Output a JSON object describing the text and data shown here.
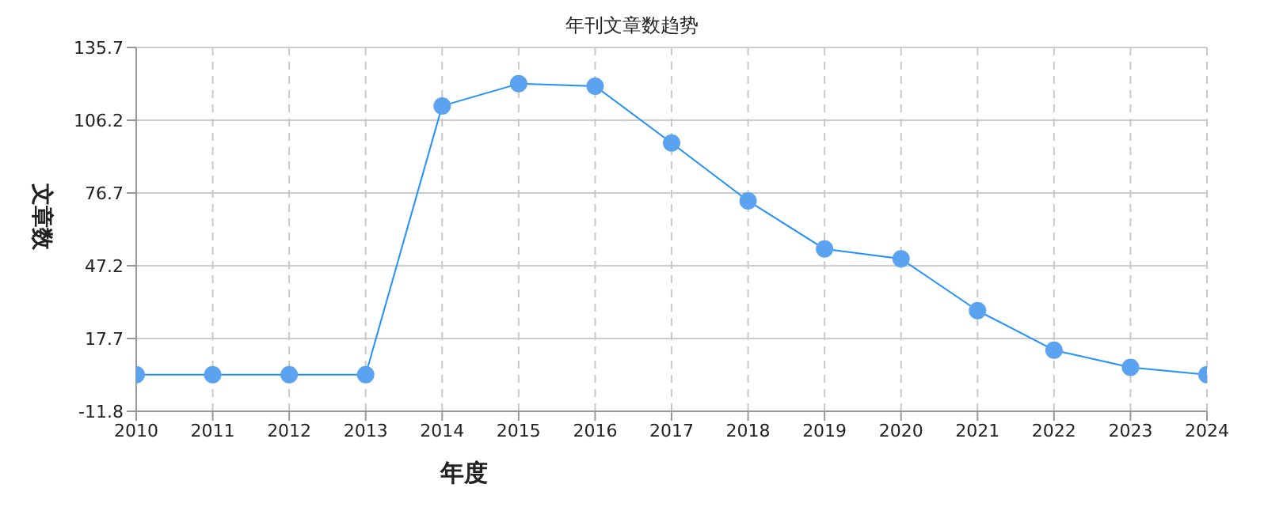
{
  "chart_data": {
    "type": "line",
    "title": "年刊文章数趋势",
    "xlabel": "年度",
    "ylabel": "文章数",
    "categories": [
      "2010",
      "2011",
      "2012",
      "2013",
      "2014",
      "2015",
      "2016",
      "2017",
      "2018",
      "2019",
      "2020",
      "2021",
      "2022",
      "2023",
      "2024"
    ],
    "series": [
      {
        "color": "#1e90ff",
        "values": [
          3,
          3,
          3,
          3,
          112,
          121,
          120,
          97,
          73.5,
          54,
          50,
          29,
          13,
          6,
          3
        ]
      }
    ],
    "ylim": [
      -11.8,
      135.7
    ],
    "yticks": [
      -11.8,
      17.7,
      47.2,
      76.7,
      106.2,
      135.7
    ],
    "grid": true,
    "legend": false,
    "marker": "circle",
    "line_style": "solid"
  }
}
